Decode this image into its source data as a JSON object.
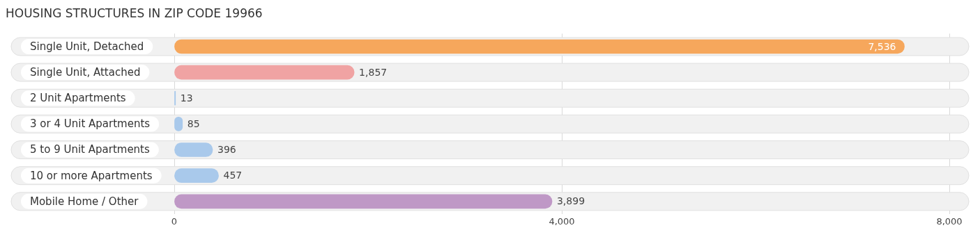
{
  "chart_data": {
    "type": "bar",
    "orientation": "horizontal",
    "title": "HOUSING STRUCTURES IN ZIP CODE 19966",
    "categories": [
      "Single Unit, Detached",
      "Single Unit, Attached",
      "2 Unit Apartments",
      "3 or 4 Unit Apartments",
      "5 to 9 Unit Apartments",
      "10 or more Apartments",
      "Mobile Home / Other"
    ],
    "values": [
      7536,
      1857,
      13,
      85,
      396,
      457,
      3899
    ],
    "colors": [
      "#f6a75c",
      "#f0a3a3",
      "#a9c9eb",
      "#a9c9eb",
      "#a9c9eb",
      "#a9c9eb",
      "#bf98c6"
    ],
    "xlim": [
      0,
      8000
    ],
    "xticks": [
      {
        "value": 0,
        "label": "0"
      },
      {
        "value": 4000,
        "label": "4,000"
      },
      {
        "value": 8000,
        "label": "8,000"
      }
    ],
    "value_labels": [
      "7,536",
      "1,857",
      "13",
      "85",
      "396",
      "457",
      "3,899"
    ],
    "grid": "x",
    "legend": false
  }
}
